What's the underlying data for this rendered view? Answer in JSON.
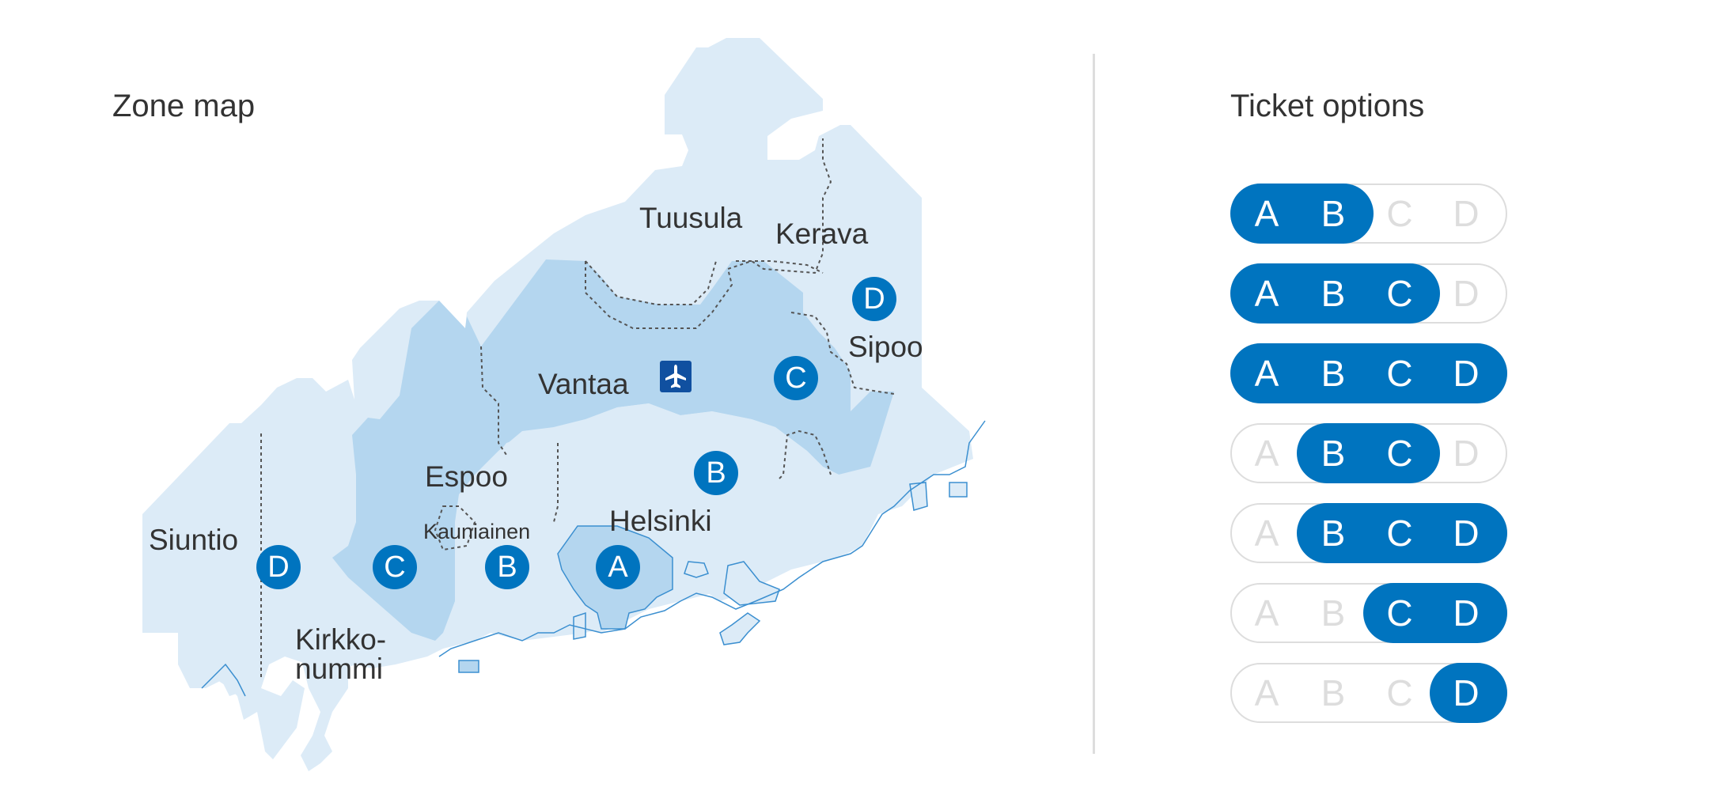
{
  "zone_map": {
    "title": "Zone map",
    "places": {
      "tuusula": "Tuusula",
      "kerava": "Kerava",
      "sipoo": "Sipoo",
      "vantaa": "Vantaa",
      "espoo": "Espoo",
      "kauniainen": "Kauniainen",
      "helsinki": "Helsinki",
      "siuntio": "Siuntio",
      "kirkkonummi_1": "Kirkko-",
      "kirkkonummi_2": "nummi"
    },
    "zone_badges": [
      "A",
      "B",
      "B",
      "C",
      "C",
      "D",
      "D"
    ],
    "airport_icon": "airplane-icon",
    "colors": {
      "outer_zone": "#dcebf7",
      "inner_zone": "#b4d6ef",
      "core_zone": "#b4d6ef",
      "coast_outline": "#3b8fd0",
      "municipal_border": "#555555",
      "badge": "#0074bf",
      "airport_badge": "#1050a0"
    }
  },
  "tickets": {
    "title": "Ticket options",
    "zone_letters": [
      "A",
      "B",
      "C",
      "D"
    ],
    "options": [
      {
        "zones": "AB",
        "active": [
          "A",
          "B"
        ]
      },
      {
        "zones": "ABC",
        "active": [
          "A",
          "B",
          "C"
        ]
      },
      {
        "zones": "ABCD",
        "active": [
          "A",
          "B",
          "C",
          "D"
        ]
      },
      {
        "zones": "BC",
        "active": [
          "B",
          "C"
        ]
      },
      {
        "zones": "BCD",
        "active": [
          "B",
          "C",
          "D"
        ]
      },
      {
        "zones": "CD",
        "active": [
          "C",
          "D"
        ]
      },
      {
        "zones": "D",
        "active": [
          "D"
        ]
      }
    ],
    "colors": {
      "active": "#0074bf",
      "inactive": "#dddddd",
      "active_text": "#ffffff"
    }
  }
}
